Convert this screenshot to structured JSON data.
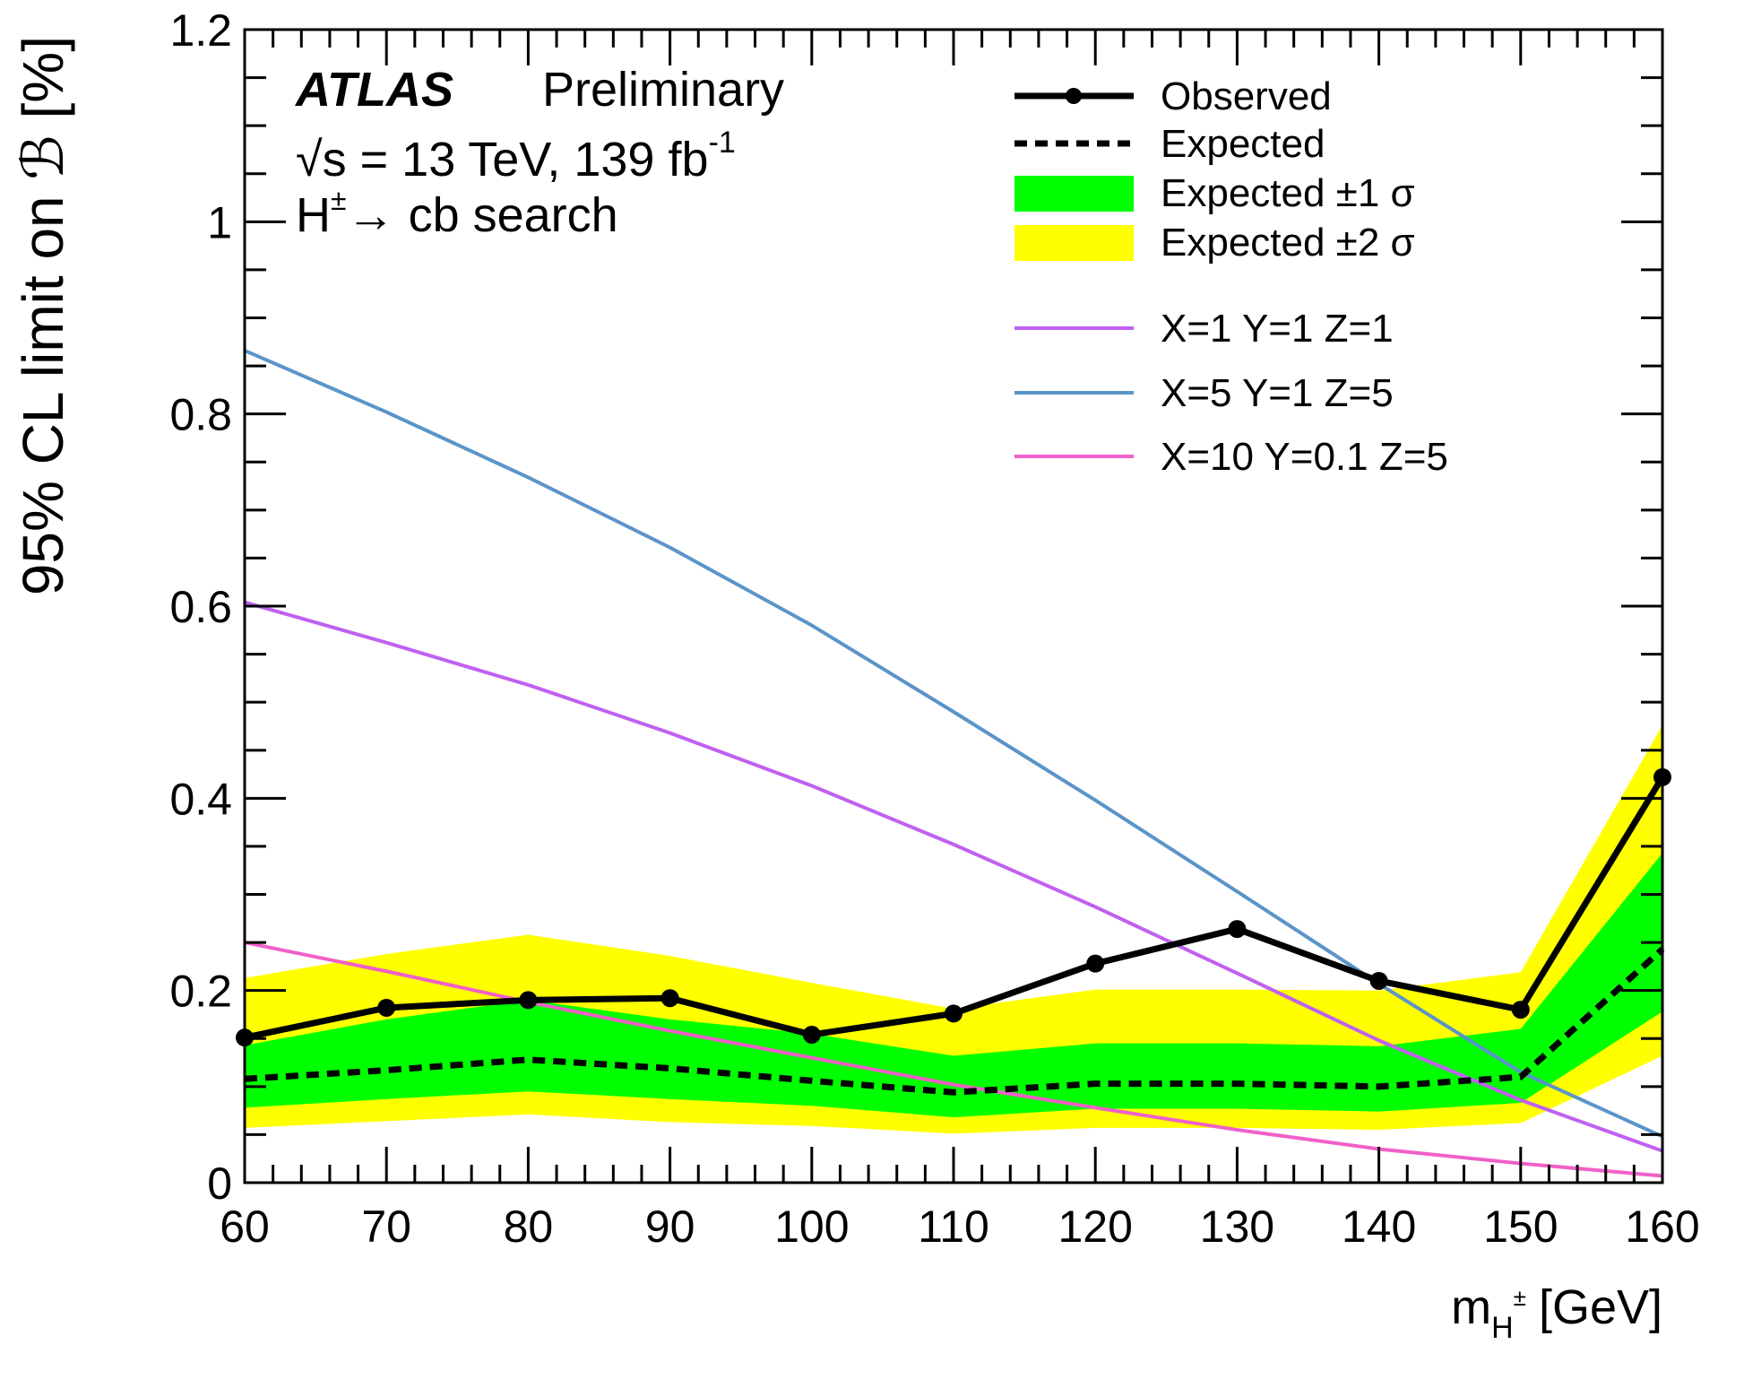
{
  "chart_data": {
    "type": "line",
    "annotations": {
      "experiment": "ATLAS",
      "status": "Preliminary",
      "energy_prefix": "√s = 13 TeV, 139 fb",
      "lumi_exponent": "-1",
      "channel_prefix": "H",
      "channel_charge": "±",
      "channel_suffix": "→ cb search"
    },
    "ylabel": "95% CL limit on ℬ [%]",
    "xlabel_main": "m",
    "xlabel_sub": "H",
    "xlabel_sup": "±",
    "xlabel_unit": "[GeV]",
    "xlim": [
      60,
      160
    ],
    "ylim": [
      0,
      1.2
    ],
    "x_ticks": [
      "60",
      "70",
      "80",
      "90",
      "100",
      "110",
      "120",
      "130",
      "140",
      "150",
      "160"
    ],
    "y_ticks": [
      "0",
      "0.2",
      "0.4",
      "0.6",
      "0.8",
      "1",
      "1.2"
    ],
    "x": [
      60,
      70,
      80,
      90,
      100,
      110,
      120,
      130,
      140,
      150,
      160
    ],
    "observed": {
      "name": "Observed",
      "values": [
        0.151,
        0.182,
        0.19,
        0.192,
        0.154,
        0.176,
        0.228,
        0.264,
        0.21,
        0.18,
        0.422
      ]
    },
    "expected": {
      "name": "Expected",
      "values": [
        0.108,
        0.117,
        0.128,
        0.119,
        0.106,
        0.094,
        0.103,
        0.103,
        0.1,
        0.11,
        0.243
      ]
    },
    "band_1sigma": {
      "name": "Expected ±1 σ",
      "lower": [
        0.078,
        0.087,
        0.095,
        0.087,
        0.08,
        0.068,
        0.077,
        0.077,
        0.074,
        0.083,
        0.178
      ],
      "upper": [
        0.143,
        0.17,
        0.19,
        0.17,
        0.155,
        0.132,
        0.145,
        0.145,
        0.142,
        0.16,
        0.343
      ]
    },
    "band_2sigma": {
      "name": "Expected ±2 σ",
      "lower": [
        0.057,
        0.064,
        0.071,
        0.063,
        0.059,
        0.051,
        0.057,
        0.057,
        0.055,
        0.062,
        0.132
      ],
      "upper": [
        0.213,
        0.238,
        0.258,
        0.236,
        0.208,
        0.181,
        0.201,
        0.201,
        0.2,
        0.219,
        0.476
      ]
    },
    "models": [
      {
        "name": "X=1 Y=1 Z=1",
        "color": "#c060f0",
        "values": [
          0.604,
          0.562,
          0.518,
          0.468,
          0.413,
          0.352,
          0.287,
          0.218,
          0.148,
          0.086,
          0.033
        ]
      },
      {
        "name": "X=5 Y=1 Z=5",
        "color": "#5b94c8",
        "values": [
          0.866,
          0.802,
          0.734,
          0.661,
          0.58,
          0.49,
          0.398,
          0.303,
          0.207,
          0.115,
          0.048
        ]
      },
      {
        "name": "X=10 Y=0.1 Z=5",
        "color": "#f060c8",
        "values": [
          0.25,
          0.22,
          0.188,
          0.158,
          0.13,
          0.102,
          0.078,
          0.055,
          0.035,
          0.02,
          0.007
        ]
      }
    ],
    "colors": {
      "observed": "#000000",
      "expected": "#000000",
      "band_1sigma": "#00ff00",
      "band_2sigma": "#ffff00"
    },
    "legend_position": "top-right"
  }
}
